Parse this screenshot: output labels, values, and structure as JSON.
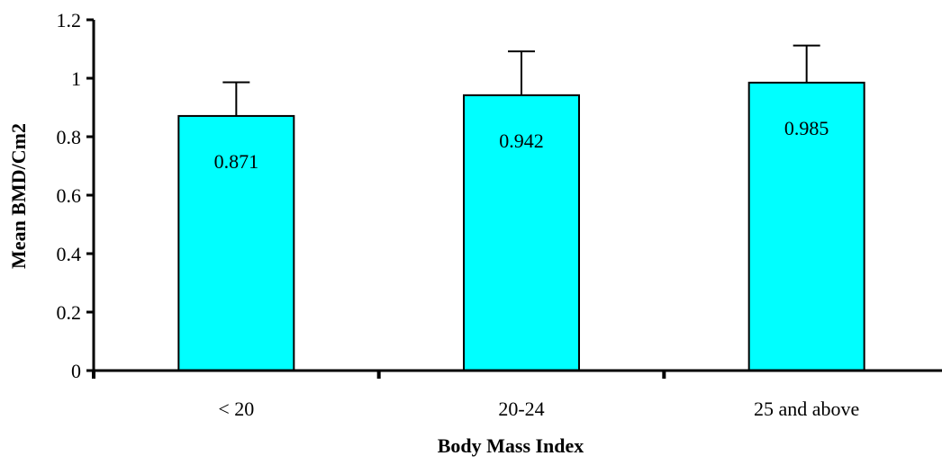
{
  "chart_data": {
    "type": "bar",
    "categories": [
      "< 20",
      "20-24",
      "25 and above"
    ],
    "values": [
      0.871,
      0.942,
      0.985
    ],
    "error_upper": [
      0.115,
      0.15,
      0.127
    ],
    "data_labels": [
      "0.871",
      "0.942",
      "0.985"
    ],
    "xlabel": "Body Mass Index",
    "ylabel": "Mean BMD/Cm2",
    "ylim": [
      0,
      1.2
    ],
    "yticks": [
      0,
      0.2,
      0.4,
      0.6,
      0.8,
      1,
      1.2
    ],
    "ytick_labels": [
      "0",
      "0.2",
      "0.4",
      "0.6",
      "0.8",
      "1",
      "1.2"
    ],
    "grid": false,
    "colors": {
      "bar_fill": "#00FFFF",
      "bar_stroke": "#000000",
      "axis": "#000000"
    }
  }
}
